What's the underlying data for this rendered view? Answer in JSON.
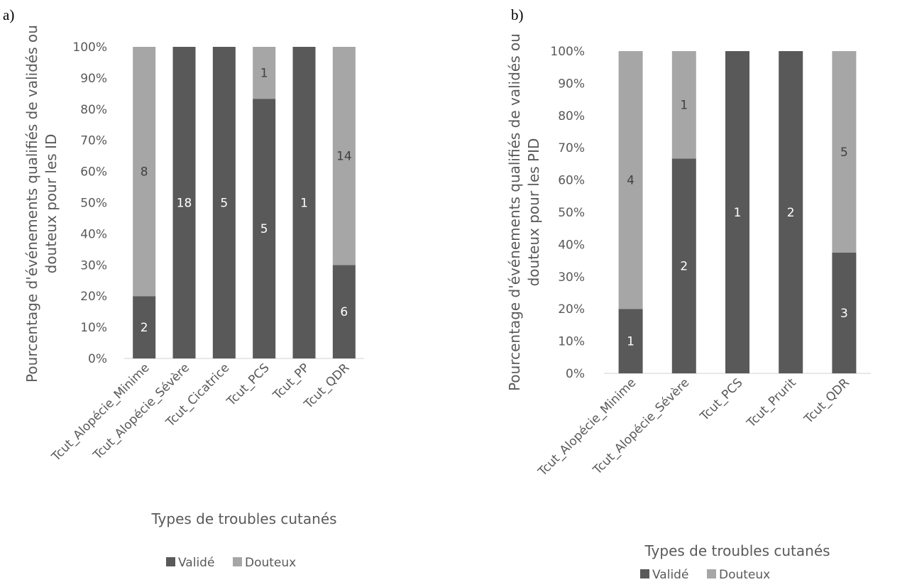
{
  "colors": {
    "valide": "#595959",
    "douteux": "#a6a6a6",
    "axis": "#d9d9d9",
    "text": "#595959"
  },
  "chart_data": [
    {
      "panel": "a)",
      "type": "bar",
      "stacked": "percent",
      "categories": [
        "Tcut_Alopécie_Minime",
        "Tcut_Alopécie_Sévère",
        "Tcut_Cicatrice",
        "Tcut_PCS",
        "Tcut_PP",
        "Tcut_QDR"
      ],
      "series": [
        {
          "name": "Validé",
          "values": [
            2,
            18,
            5,
            5,
            1,
            6
          ]
        },
        {
          "name": "Douteux",
          "values": [
            8,
            0,
            0,
            1,
            0,
            14
          ]
        }
      ],
      "xlabel": "Types de troubles cutanés",
      "ylabel": "Pourcentage d'événements qualifiés de validés ou douteux pour les ID",
      "yticks": [
        "0%",
        "10%",
        "20%",
        "30%",
        "40%",
        "50%",
        "60%",
        "70%",
        "80%",
        "90%",
        "100%"
      ],
      "ylim": [
        0,
        100
      ],
      "grid": false,
      "legend": "bottom"
    },
    {
      "panel": "b)",
      "type": "bar",
      "stacked": "percent",
      "categories": [
        "Tcut_Alopécie_Minime",
        "Tcut_Alopécie_Sévère",
        "Tcut_PCS",
        "Tcut_Prurit",
        "Tcut_QDR"
      ],
      "series": [
        {
          "name": "Validé",
          "values": [
            1,
            2,
            1,
            2,
            3
          ]
        },
        {
          "name": "Douteux",
          "values": [
            4,
            1,
            0,
            0,
            5
          ]
        }
      ],
      "xlabel": "Types de troubles cutanés",
      "ylabel": "Pourcentage d'événements qualifiés de validés ou douteux pour les PID",
      "yticks": [
        "0%",
        "10%",
        "20%",
        "30%",
        "40%",
        "50%",
        "60%",
        "70%",
        "80%",
        "90%",
        "100%"
      ],
      "ylim": [
        0,
        100
      ],
      "grid": false,
      "legend": "bottom"
    }
  ]
}
